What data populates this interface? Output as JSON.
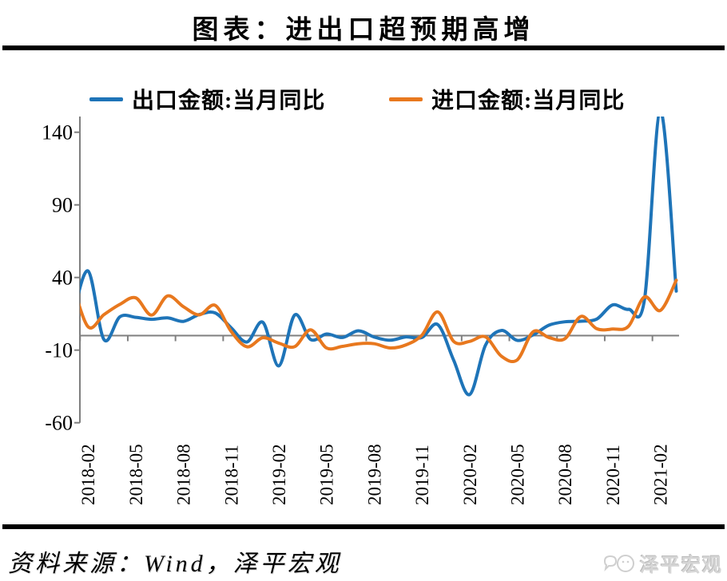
{
  "page": {
    "footer": {
      "source_text": "资料来源：Wind，泽平宏观",
      "watermark": "泽平宏观"
    }
  },
  "chart_data": {
    "type": "line",
    "title": "图表：进出口超预期高增",
    "smoothed": true,
    "grid": false,
    "legend_position": "top",
    "unit": "%",
    "ylim": [
      -60,
      150
    ],
    "yticks": [
      140,
      90,
      40,
      -10,
      -60
    ],
    "xtick_labels": [
      "2018-02",
      "2018-05",
      "2018-08",
      "2018-11",
      "2019-02",
      "2019-05",
      "2019-08",
      "2019-11",
      "2020-02",
      "2020-05",
      "2020-08",
      "2020-11",
      "2021-02"
    ],
    "x": [
      "2018-01",
      "2018-02",
      "2018-03",
      "2018-04",
      "2018-05",
      "2018-06",
      "2018-07",
      "2018-08",
      "2018-09",
      "2018-10",
      "2018-11",
      "2018-12",
      "2019-01",
      "2019-02",
      "2019-03",
      "2019-04",
      "2019-05",
      "2019-06",
      "2019-07",
      "2019-08",
      "2019-09",
      "2019-10",
      "2019-11",
      "2019-12",
      "2020-01",
      "2020-02",
      "2020-03",
      "2020-04",
      "2020-05",
      "2020-06",
      "2020-07",
      "2020-08",
      "2020-09",
      "2020-10",
      "2020-11",
      "2020-12",
      "2021-01",
      "2021-02",
      "2021-03"
    ],
    "series": [
      {
        "name": "出口金额:当月同比",
        "color": "#1E74B8",
        "values": [
          11.1,
          44.5,
          -2.7,
          12.9,
          12.6,
          11.2,
          12.2,
          9.8,
          14.5,
          15.6,
          5.4,
          -4.4,
          9.1,
          -20.8,
          14.2,
          -2.7,
          1.1,
          -1.3,
          3.3,
          -1.0,
          -3.2,
          -0.9,
          -1.3,
          7.6,
          -17.0,
          -40.6,
          -6.6,
          3.5,
          -3.3,
          0.5,
          7.2,
          9.5,
          9.9,
          11.4,
          21.1,
          18.1,
          24.8,
          154.9,
          30.6
        ]
      },
      {
        "name": "进口金额:当月同比",
        "color": "#E8781E",
        "values": [
          36.8,
          6.1,
          14.4,
          21.5,
          26.0,
          14.1,
          27.3,
          19.9,
          14.3,
          20.8,
          2.9,
          -7.7,
          -1.5,
          -5.2,
          -7.6,
          4.0,
          -8.5,
          -7.4,
          -5.6,
          -5.6,
          -8.5,
          -6.4,
          0.3,
          16.3,
          -4.0,
          -4.0,
          -0.9,
          -14.2,
          -16.7,
          2.7,
          -1.4,
          -2.1,
          13.2,
          4.7,
          4.5,
          6.5,
          26.6,
          17.3,
          38.1
        ]
      }
    ],
    "axis_color": "#7F7F7F"
  }
}
